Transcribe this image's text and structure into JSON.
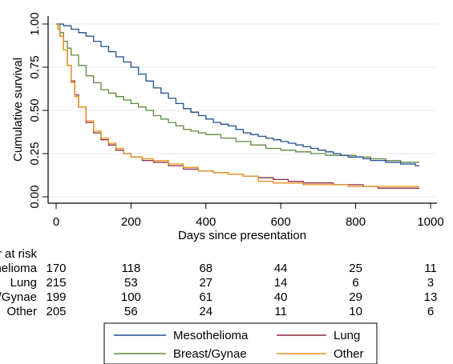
{
  "chart_data": {
    "type": "line",
    "subtype": "kaplan-meier step curves",
    "title": "",
    "xlabel": "Days since presentation",
    "ylabel": "Cumulative survival",
    "xlim": [
      0,
      1000
    ],
    "ylim": [
      0,
      1
    ],
    "x_ticks": [
      0,
      200,
      400,
      600,
      800,
      1000
    ],
    "x_tick_labels": [
      "0",
      "200",
      "400",
      "600",
      "800",
      "1000"
    ],
    "y_ticks": [
      0,
      0.25,
      0.5,
      0.75,
      1
    ],
    "y_tick_labels": [
      "0.00",
      "0.25",
      "0.50",
      "0.75",
      "1.00"
    ],
    "grid": "horizontal",
    "legend_position": "bottom",
    "series": [
      {
        "name": "Mesothelioma",
        "color": "#1f4e8c",
        "x": [
          0,
          10,
          20,
          40,
          60,
          80,
          100,
          120,
          140,
          160,
          180,
          200,
          220,
          240,
          260,
          280,
          300,
          320,
          340,
          360,
          380,
          400,
          420,
          440,
          460,
          480,
          500,
          520,
          540,
          560,
          580,
          600,
          620,
          640,
          660,
          680,
          700,
          720,
          740,
          760,
          780,
          800,
          820,
          840,
          860,
          880,
          900,
          920,
          940,
          960,
          970
        ],
        "y": [
          1.0,
          1.0,
          0.99,
          0.97,
          0.95,
          0.93,
          0.9,
          0.87,
          0.84,
          0.81,
          0.78,
          0.75,
          0.71,
          0.67,
          0.63,
          0.6,
          0.57,
          0.54,
          0.51,
          0.49,
          0.47,
          0.45,
          0.43,
          0.42,
          0.41,
          0.39,
          0.37,
          0.36,
          0.35,
          0.34,
          0.33,
          0.32,
          0.31,
          0.3,
          0.29,
          0.28,
          0.27,
          0.26,
          0.25,
          0.24,
          0.23,
          0.23,
          0.22,
          0.21,
          0.21,
          0.2,
          0.2,
          0.19,
          0.19,
          0.18,
          0.18
        ]
      },
      {
        "name": "Lung",
        "color": "#8b2a3a",
        "x": [
          0,
          5,
          10,
          20,
          30,
          40,
          50,
          60,
          80,
          100,
          120,
          140,
          160,
          180,
          200,
          230,
          260,
          300,
          340,
          380,
          420,
          460,
          500,
          540,
          580,
          620,
          660,
          700,
          740,
          780,
          820,
          860,
          900,
          940,
          970
        ],
        "y": [
          1.0,
          0.97,
          0.93,
          0.85,
          0.76,
          0.67,
          0.59,
          0.52,
          0.43,
          0.37,
          0.33,
          0.3,
          0.27,
          0.25,
          0.23,
          0.21,
          0.2,
          0.18,
          0.16,
          0.15,
          0.14,
          0.13,
          0.12,
          0.11,
          0.1,
          0.09,
          0.08,
          0.08,
          0.07,
          0.07,
          0.06,
          0.05,
          0.05,
          0.05,
          0.05
        ]
      },
      {
        "name": "Breast/Gynae",
        "color": "#5e8a3a",
        "x": [
          0,
          10,
          20,
          30,
          40,
          60,
          80,
          100,
          120,
          140,
          160,
          180,
          200,
          220,
          240,
          260,
          280,
          300,
          320,
          340,
          360,
          380,
          400,
          440,
          480,
          520,
          560,
          600,
          640,
          680,
          720,
          760,
          800,
          840,
          880,
          920,
          970
        ],
        "y": [
          1.0,
          0.95,
          0.9,
          0.86,
          0.82,
          0.76,
          0.7,
          0.66,
          0.62,
          0.6,
          0.58,
          0.56,
          0.54,
          0.52,
          0.5,
          0.47,
          0.45,
          0.43,
          0.41,
          0.39,
          0.38,
          0.37,
          0.36,
          0.34,
          0.32,
          0.3,
          0.28,
          0.27,
          0.26,
          0.25,
          0.24,
          0.24,
          0.23,
          0.22,
          0.21,
          0.2,
          0.2
        ]
      },
      {
        "name": "Other",
        "color": "#e8901a",
        "x": [
          0,
          5,
          10,
          20,
          30,
          40,
          50,
          60,
          80,
          100,
          120,
          140,
          160,
          180,
          200,
          230,
          260,
          300,
          340,
          380,
          420,
          460,
          500,
          540,
          580,
          620,
          660,
          700,
          740,
          780,
          820,
          860,
          900,
          940,
          970
        ],
        "y": [
          1.0,
          0.97,
          0.93,
          0.85,
          0.76,
          0.66,
          0.58,
          0.52,
          0.44,
          0.38,
          0.34,
          0.31,
          0.28,
          0.25,
          0.23,
          0.22,
          0.21,
          0.19,
          0.17,
          0.15,
          0.14,
          0.13,
          0.12,
          0.09,
          0.08,
          0.08,
          0.07,
          0.07,
          0.07,
          0.06,
          0.06,
          0.06,
          0.06,
          0.06,
          0.06
        ]
      }
    ],
    "number_at_risk": {
      "heading": "Number at risk",
      "rows": [
        {
          "label": "Mesothelioma",
          "values": [
            "170",
            "118",
            "68",
            "44",
            "25",
            "11"
          ]
        },
        {
          "label": "Lung",
          "values": [
            "215",
            "53",
            "27",
            "14",
            "6",
            "3"
          ]
        },
        {
          "label": "Breast/Gynae",
          "values": [
            "199",
            "100",
            "61",
            "40",
            "29",
            "13"
          ]
        },
        {
          "label": "Other",
          "values": [
            "205",
            "56",
            "24",
            "11",
            "10",
            "6"
          ]
        }
      ]
    },
    "legend": [
      {
        "name": "Mesothelioma",
        "color": "#1f4e8c"
      },
      {
        "name": "Lung",
        "color": "#8b2a3a"
      },
      {
        "name": "Breast/Gynae",
        "color": "#5e8a3a"
      },
      {
        "name": "Other",
        "color": "#e8901a"
      }
    ]
  }
}
